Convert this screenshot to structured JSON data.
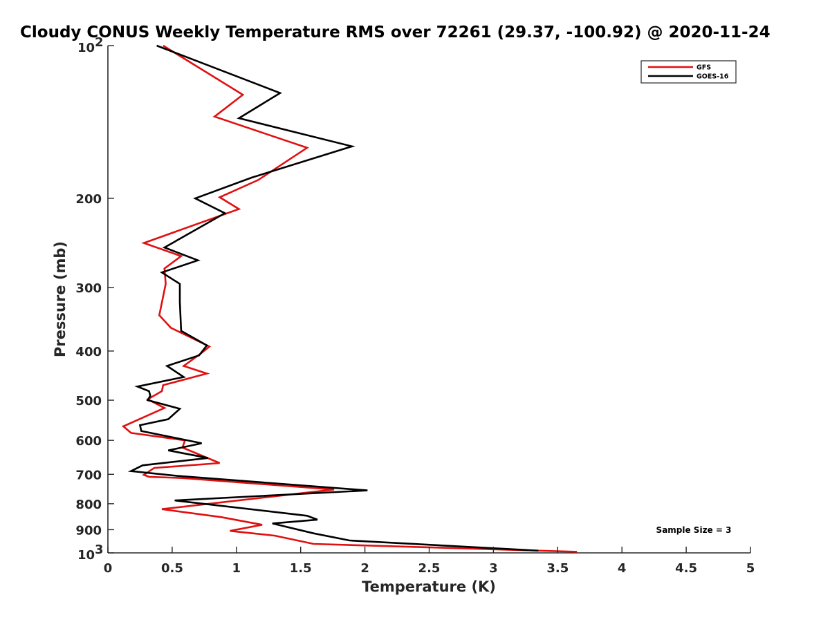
{
  "chart_data": {
    "type": "line",
    "title": "Cloudy CONUS Weekly Temperature RMS over 72261 (29.37, -100.92) @ 2020-11-24",
    "xlabel": "Temperature (K)",
    "ylabel": "Pressure (mb)",
    "xlim": [
      0,
      5
    ],
    "ylim": [
      100,
      1000
    ],
    "y_scale": "log",
    "y_reversed": true,
    "grid": false,
    "legend_position": "top-right",
    "x_ticks": [
      "0",
      "0.5",
      "1",
      "1.5",
      "2",
      "2.5",
      "3",
      "3.5",
      "4",
      "4.5",
      "5"
    ],
    "y_ticks": [
      {
        "value": 100,
        "base": "10",
        "exp": "2"
      },
      {
        "value": 200,
        "label": "200"
      },
      {
        "value": 300,
        "label": "300"
      },
      {
        "value": 400,
        "label": "400"
      },
      {
        "value": 500,
        "label": "500"
      },
      {
        "value": 600,
        "label": "600"
      },
      {
        "value": 700,
        "label": "700"
      },
      {
        "value": 800,
        "label": "800"
      },
      {
        "value": 900,
        "label": "900"
      },
      {
        "value": 1000,
        "base": "10",
        "exp": "3"
      }
    ],
    "annotation": "Sample Size = 3",
    "series": [
      {
        "name": "GFS",
        "color": "#e01010",
        "points": [
          [
            0.43,
            100
          ],
          [
            1.05,
            125
          ],
          [
            0.83,
            138
          ],
          [
            1.55,
            159
          ],
          [
            1.17,
            184
          ],
          [
            0.87,
            199
          ],
          [
            1.02,
            210
          ],
          [
            0.28,
            245
          ],
          [
            0.57,
            260
          ],
          [
            0.44,
            275
          ],
          [
            0.45,
            295
          ],
          [
            0.4,
            340
          ],
          [
            0.49,
            360
          ],
          [
            0.79,
            392
          ],
          [
            0.72,
            405
          ],
          [
            0.59,
            428
          ],
          [
            0.77,
            443
          ],
          [
            0.43,
            467
          ],
          [
            0.42,
            480
          ],
          [
            0.31,
            498
          ],
          [
            0.44,
            518
          ],
          [
            0.12,
            563
          ],
          [
            0.18,
            580
          ],
          [
            0.6,
            600
          ],
          [
            0.58,
            620
          ],
          [
            0.87,
            665
          ],
          [
            0.36,
            680
          ],
          [
            0.28,
            702
          ],
          [
            0.32,
            708
          ],
          [
            0.58,
            712
          ],
          [
            1.76,
            750
          ],
          [
            0.42,
            820
          ],
          [
            0.88,
            850
          ],
          [
            1.2,
            880
          ],
          [
            0.95,
            905
          ],
          [
            1.3,
            925
          ],
          [
            1.6,
            960
          ],
          [
            3.65,
            995
          ]
        ]
      },
      {
        "name": "GOES-16",
        "color": "#000000",
        "points": [
          [
            0.38,
            100
          ],
          [
            1.34,
            124
          ],
          [
            1.02,
            139
          ],
          [
            1.9,
            158
          ],
          [
            1.12,
            182
          ],
          [
            0.68,
            200
          ],
          [
            0.91,
            214
          ],
          [
            0.44,
            250
          ],
          [
            0.7,
            265
          ],
          [
            0.42,
            280
          ],
          [
            0.56,
            295
          ],
          [
            0.56,
            320
          ],
          [
            0.57,
            365
          ],
          [
            0.77,
            390
          ],
          [
            0.71,
            408
          ],
          [
            0.46,
            428
          ],
          [
            0.59,
            450
          ],
          [
            0.23,
            470
          ],
          [
            0.32,
            480
          ],
          [
            0.33,
            490
          ],
          [
            0.31,
            500
          ],
          [
            0.56,
            520
          ],
          [
            0.47,
            545
          ],
          [
            0.25,
            560
          ],
          [
            0.26,
            575
          ],
          [
            0.73,
            608
          ],
          [
            0.47,
            628
          ],
          [
            0.78,
            650
          ],
          [
            0.27,
            672
          ],
          [
            0.18,
            690
          ],
          [
            0.54,
            705
          ],
          [
            2.02,
            753
          ],
          [
            0.52,
            788
          ],
          [
            1.55,
            845
          ],
          [
            1.63,
            860
          ],
          [
            1.28,
            875
          ],
          [
            1.6,
            915
          ],
          [
            1.88,
            945
          ],
          [
            3.35,
            990
          ]
        ]
      }
    ]
  }
}
